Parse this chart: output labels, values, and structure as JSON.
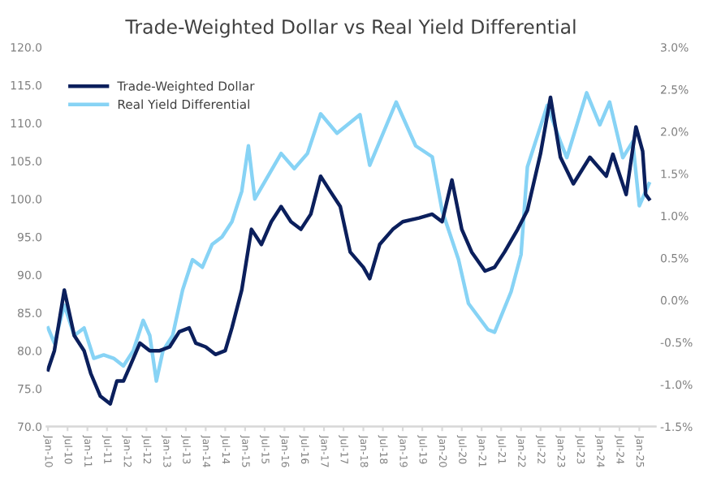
{
  "chart_data": {
    "type": "line",
    "title": "Trade-Weighted Dollar vs Real Yield Differential",
    "xlim": [
      "2009-12-20",
      "2025-06"
    ],
    "xticks": [
      {
        "value": "2010-01",
        "label": "Jan-10"
      },
      {
        "value": "2010-07",
        "label": "Jul-10"
      },
      {
        "value": "2011-01",
        "label": "Jan-11"
      },
      {
        "value": "2011-07",
        "label": "Jul-11"
      },
      {
        "value": "2012-01",
        "label": "Jan-12"
      },
      {
        "value": "2012-07",
        "label": "Jul-12"
      },
      {
        "value": "2013-01",
        "label": "Jan-13"
      },
      {
        "value": "2013-07",
        "label": "Jul-13"
      },
      {
        "value": "2014-01",
        "label": "Jan-14"
      },
      {
        "value": "2014-07",
        "label": "Jul-14"
      },
      {
        "value": "2015-01",
        "label": "Jan-15"
      },
      {
        "value": "2015-07",
        "label": "Jul-15"
      },
      {
        "value": "2016-01",
        "label": "Jan-16"
      },
      {
        "value": "2016-07",
        "label": "Jul-16"
      },
      {
        "value": "2017-01",
        "label": "Jan-17"
      },
      {
        "value": "2017-07",
        "label": "Jul-17"
      },
      {
        "value": "2018-01",
        "label": "Jan-18"
      },
      {
        "value": "2018-07",
        "label": "Jul-18"
      },
      {
        "value": "2019-01",
        "label": "Jan-19"
      },
      {
        "value": "2019-07",
        "label": "Jul-19"
      },
      {
        "value": "2020-01",
        "label": "Jan-20"
      },
      {
        "value": "2020-07",
        "label": "Jul-20"
      },
      {
        "value": "2021-01",
        "label": "Jan-21"
      },
      {
        "value": "2021-07",
        "label": "Jul-21"
      },
      {
        "value": "2022-01",
        "label": "Jan-22"
      },
      {
        "value": "2022-07",
        "label": "Jul-22"
      },
      {
        "value": "2023-01",
        "label": "Jan-23"
      },
      {
        "value": "2023-07",
        "label": "Jul-23"
      },
      {
        "value": "2024-01",
        "label": "Jan-24"
      },
      {
        "value": "2024-07",
        "label": "Jul-24"
      },
      {
        "value": "2025-01",
        "label": "Jan-25"
      }
    ],
    "ylim": [
      70,
      120
    ],
    "yticks": [
      {
        "value": 70,
        "label": "70.0"
      },
      {
        "value": 75,
        "label": "75.0"
      },
      {
        "value": 80,
        "label": "80.0"
      },
      {
        "value": 85,
        "label": "85.0"
      },
      {
        "value": 90,
        "label": "90.0"
      },
      {
        "value": 95,
        "label": "95.0"
      },
      {
        "value": 100,
        "label": "100.0"
      },
      {
        "value": 105,
        "label": "105.0"
      },
      {
        "value": 110,
        "label": "110.0"
      },
      {
        "value": 115,
        "label": "115.0"
      },
      {
        "value": 120,
        "label": "120.0"
      }
    ],
    "y2lim": [
      -1.5,
      3.0
    ],
    "y2ticks": [
      {
        "value": -1.5,
        "label": "-1.5%"
      },
      {
        "value": -1.0,
        "label": "-1.0%"
      },
      {
        "value": -0.5,
        "label": "-0.5%"
      },
      {
        "value": 0,
        "label": "0.0%"
      },
      {
        "value": 0.5,
        "label": "0.5%"
      },
      {
        "value": 1.0,
        "label": "1.0%"
      },
      {
        "value": 1.5,
        "label": "1.5%"
      },
      {
        "value": 2.0,
        "label": "2.0%"
      },
      {
        "value": 2.5,
        "label": "2.5%"
      },
      {
        "value": 3.0,
        "label": "3.0%"
      }
    ],
    "legend": "top left",
    "grid": false,
    "series": [
      {
        "name": "Trade-Weighted Dollar",
        "color": "#0b1f5c",
        "x": [
          "2010-01",
          "2010-03",
          "2010-06",
          "2010-09",
          "2010-12",
          "2011-02",
          "2011-05",
          "2011-08",
          "2011-10",
          "2011-12",
          "2012-02",
          "2012-05",
          "2012-08",
          "2012-11",
          "2013-02",
          "2013-05",
          "2013-08",
          "2013-10",
          "2014-01",
          "2014-04",
          "2014-07",
          "2014-09",
          "2014-12",
          "2015-03",
          "2015-06",
          "2015-09",
          "2015-12",
          "2016-03",
          "2016-06",
          "2016-09",
          "2016-12",
          "2017-03",
          "2017-06",
          "2017-09",
          "2018-01",
          "2018-03",
          "2018-06",
          "2018-10",
          "2019-01",
          "2019-06",
          "2019-10",
          "2020-01",
          "2020-04",
          "2020-07",
          "2020-10",
          "2021-02",
          "2021-05",
          "2021-08",
          "2021-12",
          "2022-03",
          "2022-07",
          "2022-10",
          "2023-01",
          "2023-05",
          "2023-10",
          "2024-03",
          "2024-05",
          "2024-09",
          "2024-12",
          "2025-02",
          "2025-03",
          "2025-04"
        ],
        "values": [
          77.5,
          80,
          88,
          82,
          80,
          77,
          74,
          73,
          76,
          76,
          78,
          81,
          80,
          80,
          80.5,
          82.5,
          83,
          81,
          80.5,
          79.5,
          80,
          83,
          88,
          96,
          94,
          97,
          99,
          97,
          96,
          98,
          103,
          101,
          99,
          93,
          91,
          89.5,
          94,
          96,
          97,
          97.5,
          98,
          97,
          102.5,
          96,
          93,
          90.5,
          91,
          93,
          96,
          98.5,
          106,
          113.4,
          105.5,
          102,
          105.5,
          103,
          105.9,
          100.6,
          109.5,
          106.3,
          100.6,
          100
        ]
      },
      {
        "name": "Real Yield Differential",
        "color": "#87d3f5",
        "axis": "y2",
        "x": [
          "2010-01",
          "2010-03",
          "2010-06",
          "2010-09",
          "2010-12",
          "2011-03",
          "2011-06",
          "2011-09",
          "2011-12",
          "2012-03",
          "2012-06",
          "2012-08",
          "2012-10",
          "2012-12",
          "2013-03",
          "2013-06",
          "2013-09",
          "2013-12",
          "2014-03",
          "2014-06",
          "2014-09",
          "2014-12",
          "2015-02",
          "2015-04",
          "2015-08",
          "2015-12",
          "2016-04",
          "2016-08",
          "2016-12",
          "2017-05",
          "2017-12",
          "2018-03",
          "2018-11",
          "2019-05",
          "2019-10",
          "2020-01",
          "2020-06",
          "2020-09",
          "2021-03",
          "2021-05",
          "2021-10",
          "2022-01",
          "2022-03",
          "2022-09",
          "2023-01",
          "2023-03",
          "2023-09",
          "2024-01",
          "2024-04",
          "2024-08",
          "2024-11",
          "2025-01",
          "2025-04"
        ],
        "values": [
          -0.33,
          -0.51,
          -0.06,
          -0.42,
          -0.33,
          -0.69,
          -0.65,
          -0.69,
          -0.78,
          -0.6,
          -0.24,
          -0.42,
          -0.96,
          -0.6,
          -0.42,
          0.12,
          0.48,
          0.39,
          0.66,
          0.75,
          0.93,
          1.29,
          1.83,
          1.2,
          1.47,
          1.74,
          1.56,
          1.74,
          2.21,
          1.98,
          2.2,
          1.6,
          2.35,
          1.83,
          1.7,
          1.06,
          0.48,
          -0.04,
          -0.35,
          -0.38,
          0.1,
          0.54,
          1.58,
          2.31,
          1.88,
          1.69,
          2.46,
          2.08,
          2.35,
          1.69,
          1.88,
          1.12,
          1.38
        ]
      }
    ]
  }
}
